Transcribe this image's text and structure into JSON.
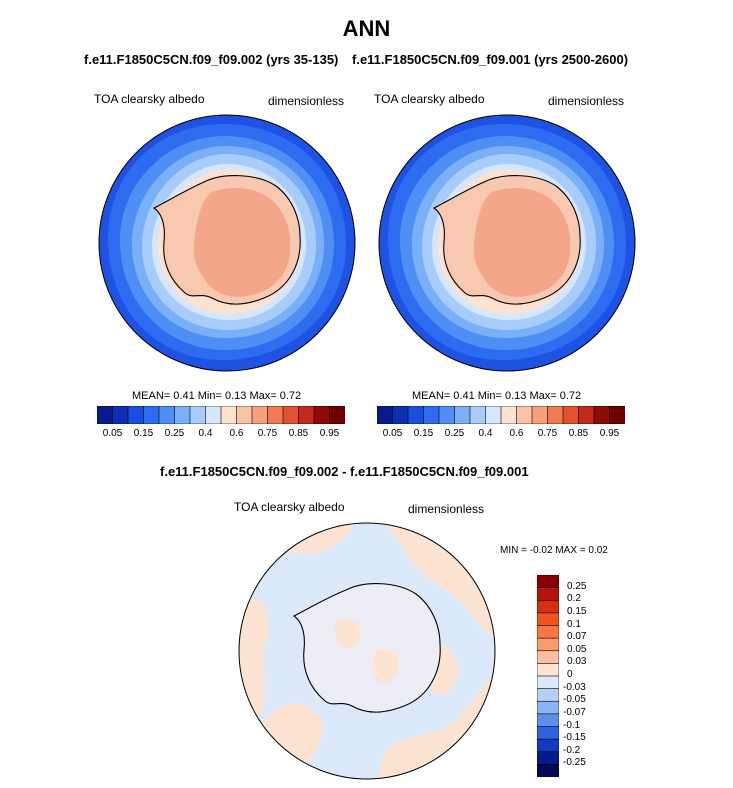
{
  "title": "ANN",
  "panels": [
    {
      "subtitle": "f.e11.F1850C5CN.f09_f09.002 (yrs 35-135)",
      "variable": "TOA clearsky albedo",
      "units": "dimensionless",
      "stats": {
        "mean_label": "MEAN=",
        "mean": "0.41",
        "min_label": "Min=",
        "min": "0.13",
        "max_label": "Max=",
        "max": "0.72"
      }
    },
    {
      "subtitle": "f.e11.F1850C5CN.f09_f09.001 (yrs 2500-2600)",
      "variable": "TOA clearsky albedo",
      "units": "dimensionless",
      "stats": {
        "mean_label": "MEAN=",
        "mean": "0.41",
        "min_label": "Min=",
        "min": "0.13",
        "max_label": "Max=",
        "max": "0.72"
      }
    }
  ],
  "diff": {
    "subtitle": "f.e11.F1850C5CN.f09_f09.002 - f.e11.F1850C5CN.f09_f09.001",
    "variable": "TOA clearsky albedo",
    "units": "dimensionless",
    "minmax": {
      "min_label": "MIN =",
      "min": "-0.02",
      "max_label": "MAX =",
      "max": "0.02"
    }
  },
  "chart_data": [
    {
      "type": "heatmap",
      "map": "south-polar-stereographic",
      "title": "f.e11.F1850C5CN.f09_f09.002 (yrs 35-135)",
      "variable": "TOA clearsky albedo",
      "units": "dimensionless",
      "mean": 0.41,
      "min": 0.13,
      "max": 0.72,
      "colorbar_levels": [
        0.05,
        0.1,
        0.15,
        0.2,
        0.25,
        0.3,
        0.4,
        0.5,
        0.6,
        0.7,
        0.75,
        0.8,
        0.85,
        0.9,
        0.95
      ],
      "colorbar_tick_labels": [
        "0.05",
        "0.15",
        "0.25",
        "0.4",
        "0.6",
        "0.75",
        "0.85",
        "0.95"
      ],
      "zonal_pattern_by_latitude": [
        {
          "lat": -40,
          "value": 0.13
        },
        {
          "lat": -50,
          "value": 0.18
        },
        {
          "lat": -55,
          "value": 0.25
        },
        {
          "lat": -60,
          "value": 0.35
        },
        {
          "lat": -65,
          "value": 0.5
        },
        {
          "lat": -70,
          "value": 0.62
        },
        {
          "lat": -80,
          "value": 0.7
        }
      ]
    },
    {
      "type": "heatmap",
      "map": "south-polar-stereographic",
      "title": "f.e11.F1850C5CN.f09_f09.001 (yrs 2500-2600)",
      "variable": "TOA clearsky albedo",
      "units": "dimensionless",
      "mean": 0.41,
      "min": 0.13,
      "max": 0.72,
      "colorbar_levels": [
        0.05,
        0.1,
        0.15,
        0.2,
        0.25,
        0.3,
        0.4,
        0.5,
        0.6,
        0.7,
        0.75,
        0.8,
        0.85,
        0.9,
        0.95
      ],
      "colorbar_tick_labels": [
        "0.05",
        "0.15",
        "0.25",
        "0.4",
        "0.6",
        "0.75",
        "0.85",
        "0.95"
      ],
      "zonal_pattern_by_latitude": [
        {
          "lat": -40,
          "value": 0.13
        },
        {
          "lat": -50,
          "value": 0.18
        },
        {
          "lat": -55,
          "value": 0.25
        },
        {
          "lat": -60,
          "value": 0.35
        },
        {
          "lat": -65,
          "value": 0.5
        },
        {
          "lat": -70,
          "value": 0.62
        },
        {
          "lat": -80,
          "value": 0.7
        }
      ]
    },
    {
      "type": "heatmap",
      "map": "south-polar-stereographic",
      "title": "f.e11.F1850C5CN.f09_f09.002 - f.e11.F1850C5CN.f09_f09.001",
      "variable": "TOA clearsky albedo",
      "units": "dimensionless",
      "min": -0.02,
      "max": 0.02,
      "colorbar_levels": [
        0.25,
        0.2,
        0.15,
        0.1,
        0.07,
        0.05,
        0.03,
        0,
        -0.03,
        -0.05,
        -0.07,
        -0.1,
        -0.15,
        -0.2,
        -0.25
      ],
      "colorbar_tick_labels": [
        "0.25",
        "0.2",
        "0.15",
        "0.1",
        "0.07",
        "0.05",
        "0.03",
        "0",
        "-0.03",
        "-0.05",
        "-0.07",
        "-0.1",
        "-0.15",
        "-0.2",
        "-0.25"
      ],
      "field_values": "mixed small anomalies between -0.03 and 0.03"
    }
  ],
  "colors": {
    "seq_colorbar": [
      "#081a8c",
      "#0a2fb5",
      "#1a4ee0",
      "#2d6cf0",
      "#4f8ef5",
      "#7ab0f8",
      "#a9cdfb",
      "#d6e7fd",
      "#fde2d2",
      "#fbc3a6",
      "#f6a07c",
      "#f07a52",
      "#e2522f",
      "#c22b17",
      "#8f0b07",
      "#6e0000"
    ],
    "div_colorbar": [
      "#8a0000",
      "#b21408",
      "#d6300f",
      "#f0531c",
      "#f77640",
      "#f99b6d",
      "#fbbfa0",
      "#fde3d2",
      "#dce9fb",
      "#b6cff7",
      "#8eb3f2",
      "#5f8fec",
      "#2d63e0",
      "#1139c2",
      "#051a8e",
      "#020a55"
    ],
    "ocean_base": "#1d52e3",
    "ice_sheet": "#f3a68a"
  }
}
